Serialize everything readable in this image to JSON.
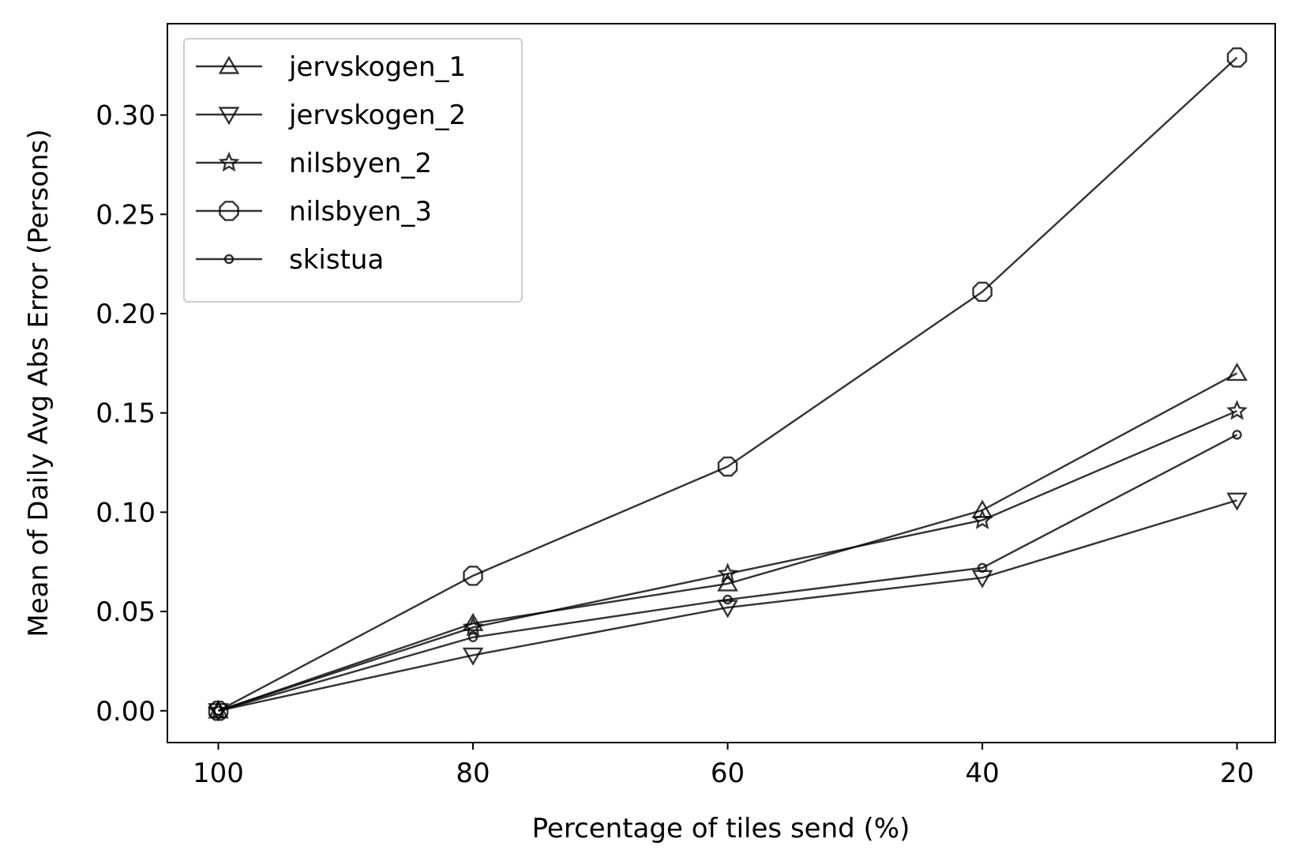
{
  "chart_data": {
    "type": "line",
    "xlabel": "Percentage of tiles send (%)",
    "ylabel": "Mean of Daily Avg Abs Error (Persons)",
    "x": [
      100,
      80,
      60,
      40,
      20
    ],
    "x_ticks": [
      "100",
      "80",
      "60",
      "40",
      "20"
    ],
    "x_reversed": true,
    "xlim": [
      104,
      17
    ],
    "ylim": [
      -0.016,
      0.346
    ],
    "y_ticks": [
      "0.00",
      "0.05",
      "0.10",
      "0.15",
      "0.20",
      "0.25",
      "0.30"
    ],
    "y_tick_values": [
      0,
      0.05,
      0.1,
      0.15,
      0.2,
      0.25,
      0.3
    ],
    "grid": false,
    "legend_position": "top-left",
    "line_color": "#000000",
    "series": [
      {
        "name": "jervskogen_1",
        "marker": "triangle-up",
        "values": [
          0.0,
          0.044,
          0.064,
          0.101,
          0.17
        ]
      },
      {
        "name": "jervskogen_2",
        "marker": "triangle-down",
        "values": [
          0.0,
          0.028,
          0.052,
          0.067,
          0.106
        ]
      },
      {
        "name": "nilsbyen_2",
        "marker": "star",
        "values": [
          0.0,
          0.042,
          0.069,
          0.096,
          0.151
        ]
      },
      {
        "name": "nilsbyen_3",
        "marker": "octagon",
        "values": [
          0.0,
          0.068,
          0.123,
          0.211,
          0.329
        ]
      },
      {
        "name": "skistua",
        "marker": "circle",
        "values": [
          0.0,
          0.037,
          0.056,
          0.072,
          0.139
        ]
      }
    ]
  }
}
